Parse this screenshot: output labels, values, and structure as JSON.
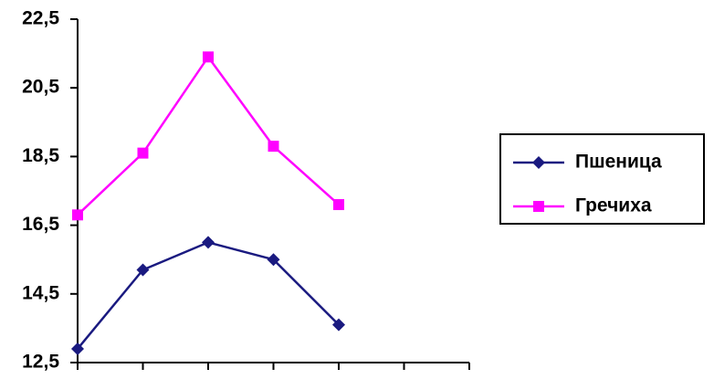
{
  "chart_data": {
    "type": "line",
    "categories": [
      null,
      null,
      null,
      null,
      null,
      null,
      null
    ],
    "series": [
      {
        "name": "Пшеница",
        "color": "#1a1a80",
        "marker": "diamond",
        "values": [
          12.9,
          15.2,
          16.0,
          15.5,
          13.6,
          null,
          null
        ]
      },
      {
        "name": "Гречиха",
        "color": "#ff00ff",
        "marker": "square",
        "values": [
          16.8,
          18.6,
          21.4,
          18.8,
          17.1,
          null,
          null
        ]
      }
    ],
    "ylim": [
      12.5,
      22.5
    ],
    "yticks": [
      {
        "value": 12.5,
        "label": "12,5"
      },
      {
        "value": 14.5,
        "label": "14,5"
      },
      {
        "value": 16.5,
        "label": "16,5"
      },
      {
        "value": 18.5,
        "label": "18,5"
      },
      {
        "value": 20.5,
        "label": "20,5"
      },
      {
        "value": 22.5,
        "label": "22,5"
      }
    ],
    "legend": "right"
  }
}
